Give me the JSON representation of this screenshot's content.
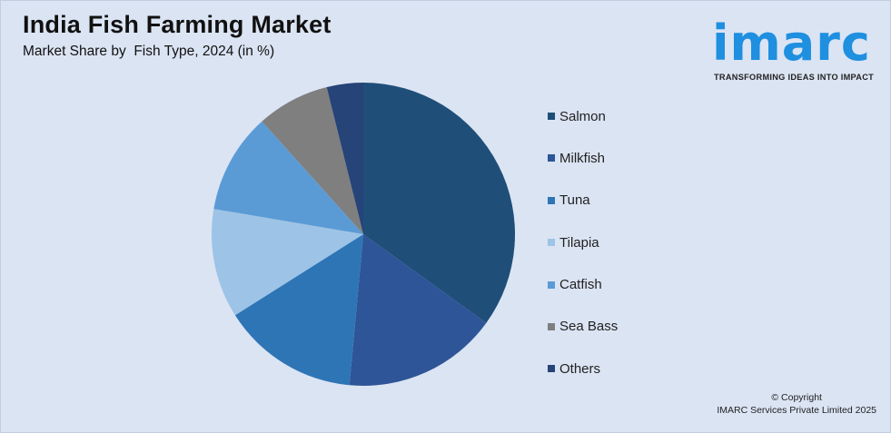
{
  "header": {
    "title": "India Fish Farming Market",
    "subtitle": "Market Share by  Fish Type, 2024 (in %)"
  },
  "logo": {
    "word": "imarc",
    "tagline": "TRANSFORMING IDEAS INTO IMPACT"
  },
  "footer": {
    "copyright_line1": "© Copyright",
    "copyright_line2": "IMARC Services Private Limited 2025"
  },
  "chart_data": {
    "type": "pie",
    "title": "India Fish Farming Market",
    "subtitle": "Market Share by  Fish Type, 2024 (in %)",
    "legend_position": "right",
    "start": "top, clockwise",
    "slices": [
      {
        "name": "Salmon",
        "value": 36,
        "color": "#1f4e79"
      },
      {
        "name": "Milkfish",
        "value": 17,
        "color": "#2e5597"
      },
      {
        "name": "Tuna",
        "value": 15,
        "color": "#2e75b6"
      },
      {
        "name": "Tilapia",
        "value": 12,
        "color": "#9dc3e6"
      },
      {
        "name": "Catfish",
        "value": 11,
        "color": "#5b9bd5"
      },
      {
        "name": "Sea Bass",
        "value": 8,
        "color": "#7f7f7f"
      },
      {
        "name": "Others",
        "value": 4,
        "color": "#264478"
      }
    ]
  }
}
